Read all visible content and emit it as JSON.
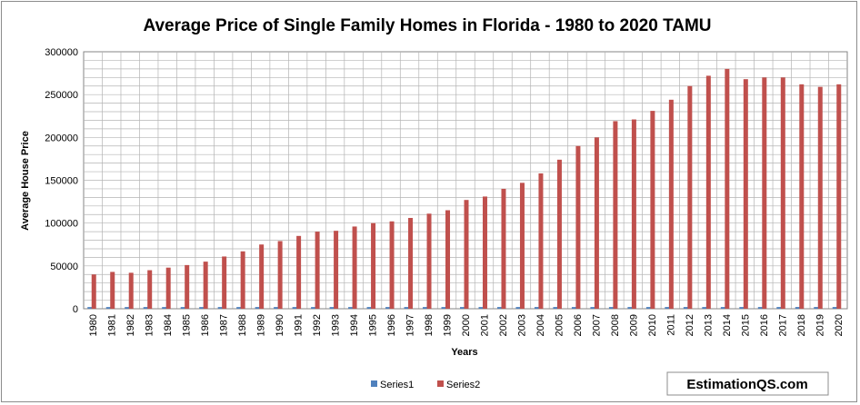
{
  "chart_data": {
    "type": "bar",
    "title": "Average Price of Single Family Homes in Florida - 1980 to 2020 TAMU",
    "xlabel": "Years",
    "ylabel": "Average House  Price",
    "ylim": [
      0,
      300000
    ],
    "yticks": [
      "0",
      "50000",
      "100000",
      "150000",
      "200000",
      "250000",
      "300000"
    ],
    "grid": true,
    "legend_position": "bottom",
    "categories": [
      "1980",
      "1981",
      "1982",
      "1983",
      "1984",
      "1985",
      "1986",
      "1987",
      "1988",
      "1989",
      "1990",
      "1991",
      "1992",
      "1993",
      "1994",
      "1995",
      "1996",
      "1997",
      "1998",
      "1999",
      "2000",
      "2001",
      "2002",
      "2003",
      "2004",
      "2005",
      "2006",
      "2007",
      "2008",
      "2009",
      "2010",
      "2011",
      "2012",
      "2013",
      "2014",
      "2015",
      "2016",
      "2017",
      "2018",
      "2019",
      "2020"
    ],
    "series": [
      {
        "name": "Series1",
        "color": "#4f81bd",
        "values": [
          1980,
          1981,
          1982,
          1983,
          1984,
          1985,
          1986,
          1987,
          1988,
          1989,
          1990,
          1991,
          1992,
          1993,
          1994,
          1995,
          1996,
          1997,
          1998,
          1999,
          2000,
          2001,
          2002,
          2003,
          2004,
          2005,
          2006,
          2007,
          2008,
          2009,
          2010,
          2011,
          2012,
          2013,
          2014,
          2015,
          2016,
          2017,
          2018,
          2019,
          2020
        ]
      },
      {
        "name": "Series2",
        "color": "#c0504d",
        "values": [
          40000,
          43000,
          42000,
          45000,
          48000,
          51000,
          55000,
          61000,
          67000,
          75000,
          79000,
          85000,
          90000,
          91000,
          96000,
          100000,
          102000,
          106000,
          111000,
          115000,
          127000,
          131000,
          140000,
          147000,
          158000,
          174000,
          190000,
          200000,
          219000,
          221000,
          231000,
          244000,
          260000,
          272000,
          280000,
          268000,
          270000,
          270000,
          262000,
          259000,
          262000
        ]
      }
    ]
  },
  "watermark": "EstimationQS.com"
}
